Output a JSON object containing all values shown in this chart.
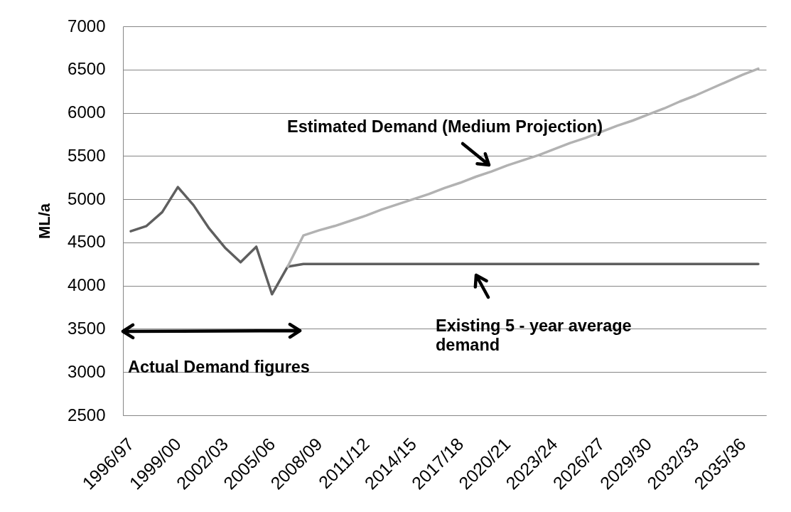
{
  "chart_data": {
    "type": "line",
    "categories": [
      "1996/97",
      null,
      null,
      "1999/00",
      null,
      null,
      "2002/03",
      null,
      null,
      "2005/06",
      null,
      null,
      "2008/09",
      null,
      null,
      "2011/12",
      null,
      null,
      "2014/15",
      null,
      null,
      "2017/18",
      null,
      null,
      "2020/21",
      null,
      null,
      "2023/24",
      null,
      null,
      "2026/27",
      null,
      null,
      "2029/30",
      null,
      null,
      "2032/33",
      null,
      null,
      "2035/36",
      null
    ],
    "series": [
      {
        "color": "#5f5f5f",
        "values": [
          4630,
          4690,
          4850,
          5140,
          4930,
          4660,
          4440,
          4270,
          4450,
          3900,
          4220,
          4250,
          4250,
          4250,
          4250,
          4250,
          4250,
          4250,
          4250,
          4250,
          4250,
          4250,
          4250,
          4250,
          4250,
          4250,
          4250,
          4250,
          4250,
          4250,
          4250,
          4250,
          4250,
          4250,
          4250,
          4250,
          4250,
          4250,
          4250,
          4250,
          4250
        ]
      },
      {
        "color": "#b2b2b2",
        "values": [
          null,
          null,
          null,
          null,
          null,
          null,
          null,
          null,
          null,
          null,
          4220,
          4580,
          4640,
          4690,
          4750,
          4810,
          4880,
          4940,
          5000,
          5060,
          5130,
          5190,
          5260,
          5320,
          5390,
          5450,
          5510,
          5580,
          5650,
          5710,
          5780,
          5850,
          5910,
          5980,
          6050,
          6130,
          6200,
          6280,
          6360,
          6440,
          6510
        ]
      }
    ],
    "ylabel": "ML/a",
    "ylim": [
      2500,
      7000
    ],
    "yticks": [
      2500,
      3000,
      3500,
      4000,
      4500,
      5000,
      5500,
      6000,
      6500,
      7000
    ],
    "grid": "y",
    "annotations": [
      "Estimated Demand (Medium Projection)",
      "Existing 5 - year average demand",
      "Actual Demand figures"
    ]
  }
}
